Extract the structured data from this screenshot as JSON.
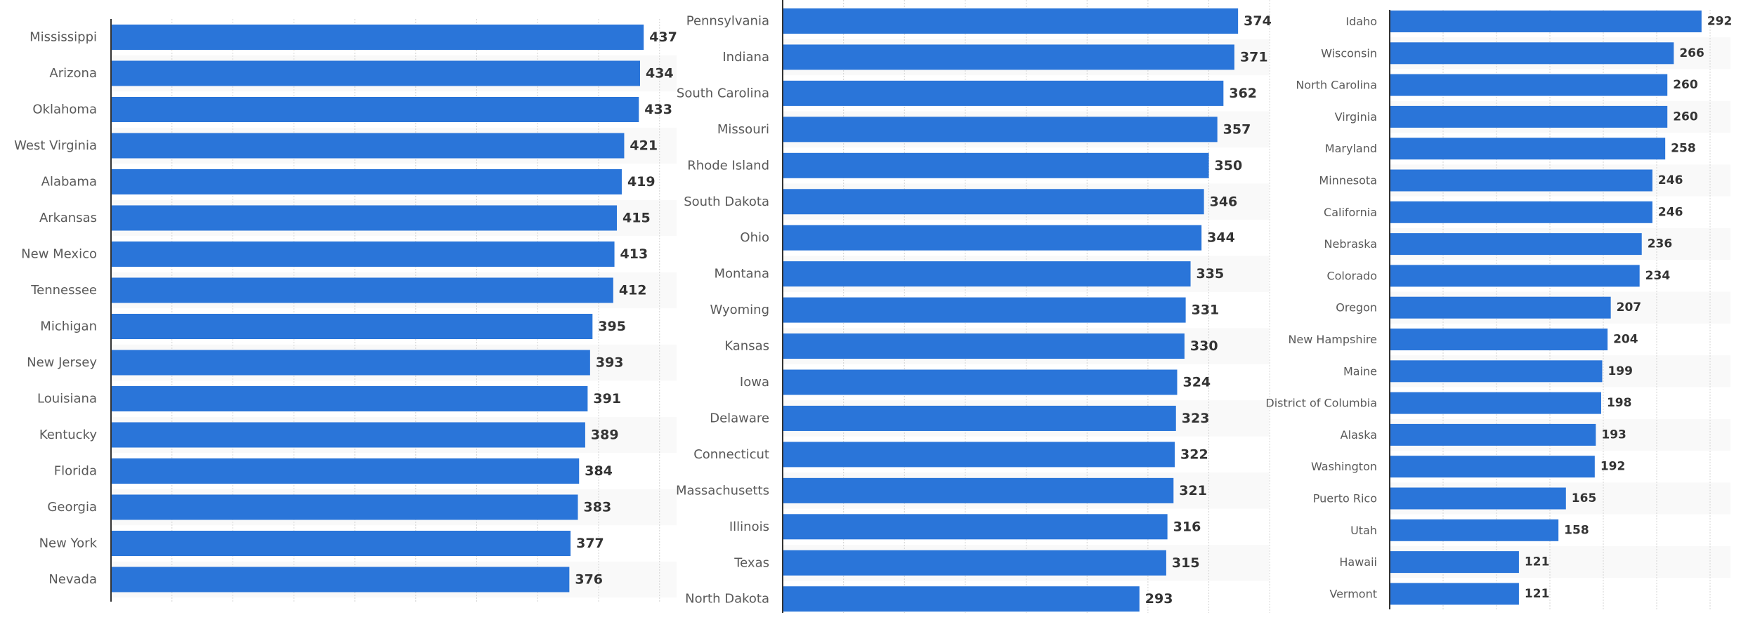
{
  "chart_data": [
    {
      "type": "bar",
      "orientation": "horizontal",
      "title": "",
      "xlabel": "",
      "ylabel": "",
      "grid": true,
      "xlim": [
        0,
        450
      ],
      "color": "#2a75d9",
      "categories": [
        "Mississippi",
        "Arizona",
        "Oklahoma",
        "West Virginia",
        "Alabama",
        "Arkansas",
        "New Mexico",
        "Tennessee",
        "Michigan",
        "New Jersey",
        "Louisiana",
        "Kentucky",
        "Florida",
        "Georgia",
        "New York",
        "Nevada"
      ],
      "values": [
        437,
        434,
        433,
        421,
        419,
        415,
        413,
        412,
        395,
        393,
        391,
        389,
        384,
        383,
        377,
        376
      ]
    },
    {
      "type": "bar",
      "orientation": "horizontal",
      "title": "",
      "xlabel": "",
      "ylabel": "",
      "grid": true,
      "xlim": [
        0,
        400
      ],
      "color": "#2a75d9",
      "categories": [
        "Pennsylvania",
        "Indiana",
        "South Carolina",
        "Missouri",
        "Rhode Island",
        "South Dakota",
        "Ohio",
        "Montana",
        "Wyoming",
        "Kansas",
        "Iowa",
        "Delaware",
        "Connecticut",
        "Massachusetts",
        "Illinois",
        "Texas",
        "North Dakota"
      ],
      "values": [
        374,
        371,
        362,
        357,
        350,
        346,
        344,
        335,
        331,
        330,
        324,
        323,
        322,
        321,
        316,
        315,
        293
      ]
    },
    {
      "type": "bar",
      "orientation": "horizontal",
      "title": "",
      "xlabel": "",
      "ylabel": "",
      "grid": true,
      "xlim": [
        0,
        300
      ],
      "color": "#2a75d9",
      "categories": [
        "Idaho",
        "Wisconsin",
        "North Carolina",
        "Virginia",
        "Maryland",
        "Minnesota",
        "California",
        "Nebraska",
        "Colorado",
        "Oregon",
        "New Hampshire",
        "Maine",
        "District of Columbia",
        "Alaska",
        "Washington",
        "Puerto Rico",
        "Utah",
        "Hawaii",
        "Vermont"
      ],
      "values": [
        292,
        266,
        260,
        260,
        258,
        246,
        246,
        236,
        234,
        207,
        204,
        199,
        198,
        193,
        192,
        165,
        158,
        121,
        121
      ]
    }
  ]
}
